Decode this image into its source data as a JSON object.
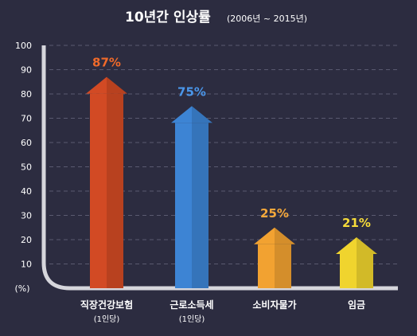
{
  "chart_data": {
    "type": "bar",
    "title": "10년간 인상률",
    "subtitle": "(2006년 ~ 2015년)",
    "ylabel": "(%)",
    "ylim": [
      0,
      100
    ],
    "yticks": [
      10,
      20,
      30,
      40,
      50,
      60,
      70,
      80,
      90,
      100
    ],
    "grid": true,
    "categories": [
      {
        "name": "직장건강보험",
        "sub": "(1인당)"
      },
      {
        "name": "근로소득세",
        "sub": "(1인당)"
      },
      {
        "name": "소비자물가",
        "sub": ""
      },
      {
        "name": "임금",
        "sub": ""
      }
    ],
    "values": [
      87,
      75,
      25,
      21
    ],
    "value_labels": [
      "87%",
      "75%",
      "25%",
      "21%"
    ],
    "colors": [
      "#d24a24",
      "#3d84d4",
      "#f2a231",
      "#f0d42e"
    ],
    "label_colors": [
      "#f06a2a",
      "#4a96ea",
      "#f6a83a",
      "#f7dc3a"
    ]
  }
}
